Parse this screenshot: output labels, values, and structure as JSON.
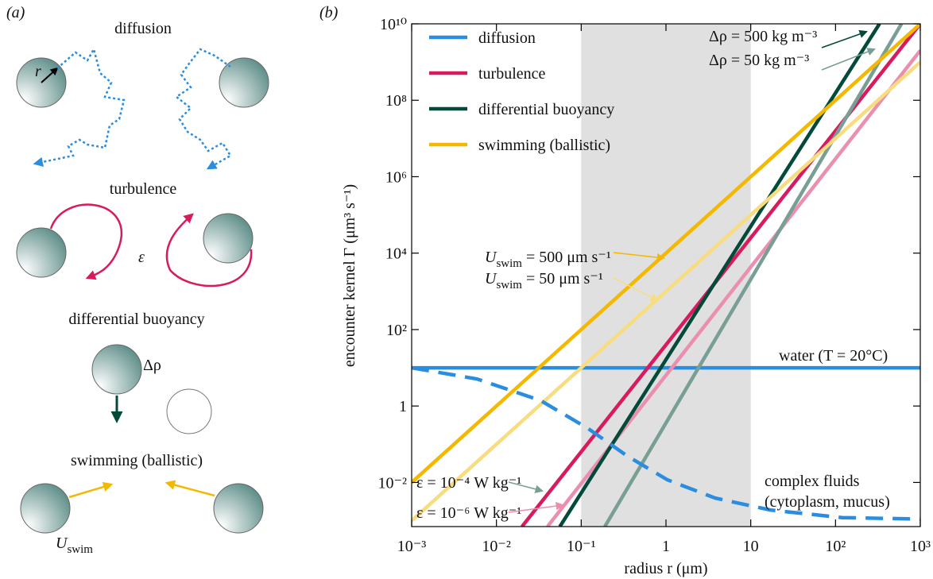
{
  "panel_a": {
    "panel_label": "(a)",
    "titles": [
      "diffusion",
      "turbulence",
      "differential buoyancy",
      "swimming (ballistic)"
    ],
    "radius_symbol": "r",
    "turbulence_symbol": "ε",
    "buoyancy_symbol": "Δρ",
    "swim_symbol": [
      "U",
      "swim"
    ]
  },
  "chart_data": {
    "type": "line",
    "panel_label": "(b)",
    "x_label": "radius r (μm)",
    "y_label": "encounter kernel Γ (μm³ s⁻¹)",
    "log_x": true,
    "log_y": true,
    "grid": false,
    "legend": "upper left",
    "xlim": [
      0.001,
      1000
    ],
    "xticks": [
      {
        "value": 0.001,
        "label": "10⁻³"
      },
      {
        "value": 0.01,
        "label": "10⁻²"
      },
      {
        "value": 0.1,
        "label": "10⁻¹"
      },
      1,
      10,
      {
        "value": 100,
        "label": "10²"
      },
      {
        "value": 1000,
        "label": "10³"
      }
    ],
    "ylim": [
      0.0007,
      10000000000
    ],
    "yticks": [
      {
        "value": 0.01,
        "label": "10⁻²"
      },
      1,
      {
        "value": 100,
        "label": "10²"
      },
      {
        "value": 10000,
        "label": "10⁴"
      },
      {
        "value": 1000000,
        "label": "10⁶"
      },
      {
        "value": 100000000,
        "label": "10⁸"
      },
      {
        "value": 10000000000,
        "label": "10¹⁰"
      }
    ],
    "band": [
      0.1,
      10
    ],
    "band_color": "#e0e0e0",
    "series": [
      {
        "name": "diffusion",
        "color": "#2b8de0",
        "x": [
          0.001,
          1000
        ],
        "values": [
          10,
          10
        ]
      },
      {
        "name": "turbulence",
        "color": "#d81b5e",
        "x": [
          0.02,
          1000
        ],
        "values": [
          0.0007,
          10000000000
        ]
      },
      {
        "color": "#eb8fb0",
        "x": [
          0.04,
          1000
        ],
        "values": [
          0.0007,
          2000000000
        ]
      },
      {
        "name": "differential buoyancy",
        "color": "#044a3b",
        "x": [
          0.056,
          330
        ],
        "values": [
          0.0007,
          10000000000
        ]
      },
      {
        "color": "#789e95",
        "x": [
          0.19,
          600
        ],
        "values": [
          0.0007,
          10000000000
        ]
      },
      {
        "name": "swimming (ballistic)",
        "color": "#f5b800",
        "x": [
          0.001,
          1000
        ],
        "values": [
          0.01,
          10000000000
        ]
      },
      {
        "color": "#f8dc80",
        "x": [
          0.001,
          1000
        ],
        "values": [
          0.001,
          1000000000
        ]
      },
      {
        "color": "#2b8de0",
        "dashed": true,
        "x": [
          0.001,
          0.0059,
          0.033,
          0.12,
          0.35,
          1.04,
          3.8,
          17,
          120,
          1000
        ],
        "values": [
          10,
          5.1,
          1.4,
          0.26,
          0.049,
          0.0117,
          0.0039,
          0.0019,
          0.0012,
          0.0011
        ]
      }
    ],
    "annotations": [
      "water (T = 20°C)",
      "ε = 10⁻⁴ W kg⁻¹",
      "ε = 10⁻⁶ W kg⁻¹",
      "Δρ = 500 kg m⁻³",
      "Δρ = 50 kg m⁻³",
      [
        "U",
        "swim",
        " = 500 μm s⁻¹"
      ],
      [
        "U",
        "swim",
        " = 50 μm s⁻¹"
      ],
      "complex fluids",
      "(cytoplasm, mucus)"
    ]
  }
}
